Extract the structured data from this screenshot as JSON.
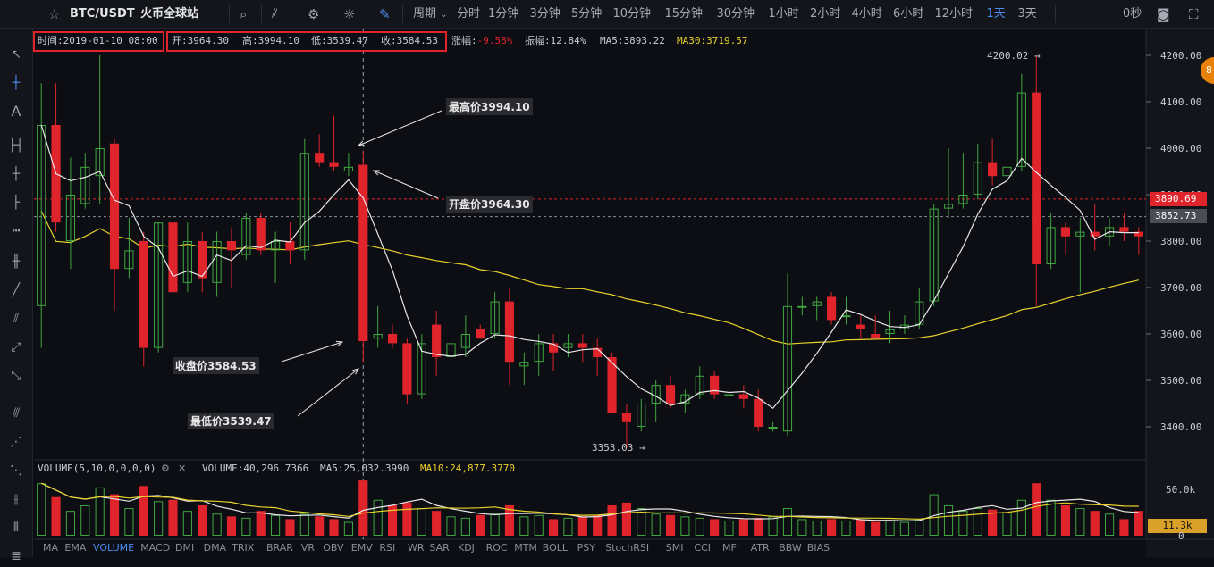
{
  "header": {
    "symbol": "BTC/USDT",
    "exchange": "火币全球站",
    "period_label": "周期",
    "timeframes": [
      "分时",
      "1分钟",
      "3分钟",
      "5分钟",
      "10分钟",
      "15分钟",
      "30分钟",
      "1小时",
      "2小时",
      "4小时",
      "6小时",
      "12小时",
      "1天",
      "3天"
    ],
    "active_timeframe": "1天",
    "countdown": "0秒"
  },
  "ohlc": {
    "time_label": "时间:2019-01-10 08:00",
    "open_label": "开:3964.30",
    "high_label": "高:3994.10",
    "low_label": "低:3539.47",
    "close_label": "收:3584.53",
    "change_label": "涨幅:",
    "change_value": "-9.58%",
    "amplitude_label": "振幅:12.84%",
    "ma5_label": "MA5:3893.22",
    "ma30_label": "MA30:3719.57"
  },
  "annotations": {
    "high": "最高价3994.10",
    "open": "开盘价3964.30",
    "close": "收盘价3584.53",
    "low": "最低价3539.47",
    "max_marker": "4200.02 →",
    "min_marker": "3353.03 →"
  },
  "price_axis": {
    "ticks": [
      "4200.00",
      "4100.00",
      "4000.00",
      "3900.00",
      "3800.00",
      "3700.00",
      "3600.00",
      "3500.00",
      "3400.00"
    ],
    "red_level_label": "3890.69",
    "gray_level_label": "3852.73"
  },
  "volume_panel": {
    "title": "VOLUME(5,10,0,0,0,0)",
    "volume_label": "VOLUME:40,296.7366",
    "ma5_label": "MA5:25,032.3990",
    "ma10_label": "MA10:24,877.3770",
    "axis_tick": "50.0k",
    "axis_zero": "0",
    "current_label": "11.3k"
  },
  "indicators": [
    "MA",
    "EMA",
    "VOLUME",
    "MACD",
    "DMI",
    "DMA",
    "TRIX",
    "BRAR",
    "VR",
    "OBV",
    "EMV",
    "RSI",
    "WR",
    "SAR",
    "KDJ",
    "ROC",
    "MTM",
    "BOLL",
    "PSY",
    "StochRSI",
    "SMI",
    "CCI",
    "MFI",
    "ATR",
    "BBW",
    "BIAS"
  ],
  "active_indicator": "VOLUME",
  "colors": {
    "up": "#3fa73f",
    "down": "#e0242b",
    "ma5": "#e8e8e8",
    "ma30": "#e9d22c",
    "accent": "#4d8df5",
    "volume_tag": "#d9a02a"
  },
  "chart_data": {
    "type": "candlestick",
    "title": "BTC/USDT",
    "ylim": [
      3310,
      4250
    ],
    "current_price_gray": 3852.73,
    "red_level": 3890.69,
    "candles": [
      {
        "o": 3660,
        "h": 4140,
        "l": 3570,
        "c": 4050,
        "v": 38
      },
      {
        "o": 4050,
        "h": 4140,
        "l": 3820,
        "c": 3840,
        "v": 28
      },
      {
        "o": 3800,
        "h": 3980,
        "l": 3740,
        "c": 3900,
        "v": 18
      },
      {
        "o": 3880,
        "h": 3990,
        "l": 3870,
        "c": 3960,
        "v": 22
      },
      {
        "o": 3940,
        "h": 4200,
        "l": 3880,
        "c": 4000,
        "v": 35
      },
      {
        "o": 4010,
        "h": 4020,
        "l": 3650,
        "c": 3740,
        "v": 30
      },
      {
        "o": 3740,
        "h": 3850,
        "l": 3720,
        "c": 3780,
        "v": 20
      },
      {
        "o": 3800,
        "h": 3820,
        "l": 3530,
        "c": 3570,
        "v": 36
      },
      {
        "o": 3570,
        "h": 3840,
        "l": 3560,
        "c": 3840,
        "v": 25
      },
      {
        "o": 3840,
        "h": 3880,
        "l": 3680,
        "c": 3690,
        "v": 26
      },
      {
        "o": 3710,
        "h": 3840,
        "l": 3690,
        "c": 3800,
        "v": 18
      },
      {
        "o": 3800,
        "h": 3820,
        "l": 3690,
        "c": 3720,
        "v": 22
      },
      {
        "o": 3710,
        "h": 3820,
        "l": 3680,
        "c": 3800,
        "v": 16
      },
      {
        "o": 3800,
        "h": 3830,
        "l": 3700,
        "c": 3780,
        "v": 14
      },
      {
        "o": 3770,
        "h": 3860,
        "l": 3760,
        "c": 3850,
        "v": 13
      },
      {
        "o": 3850,
        "h": 3860,
        "l": 3770,
        "c": 3780,
        "v": 18
      },
      {
        "o": 3780,
        "h": 3820,
        "l": 3710,
        "c": 3800,
        "v": 15
      },
      {
        "o": 3800,
        "h": 3840,
        "l": 3750,
        "c": 3780,
        "v": 12
      },
      {
        "o": 3780,
        "h": 4020,
        "l": 3760,
        "c": 3990,
        "v": 16
      },
      {
        "o": 3990,
        "h": 4030,
        "l": 3960,
        "c": 3970,
        "v": 14
      },
      {
        "o": 3970,
        "h": 4070,
        "l": 3950,
        "c": 3960,
        "v": 12
      },
      {
        "o": 3950,
        "h": 3990,
        "l": 3940,
        "c": 3960,
        "v": 10
      },
      {
        "o": 3964.3,
        "h": 3994.1,
        "l": 3539.47,
        "c": 3584.53,
        "v": 40
      },
      {
        "o": 3590,
        "h": 3660,
        "l": 3570,
        "c": 3600,
        "v": 26
      },
      {
        "o": 3600,
        "h": 3620,
        "l": 3570,
        "c": 3580,
        "v": 22
      },
      {
        "o": 3580,
        "h": 3590,
        "l": 3450,
        "c": 3470,
        "v": 24
      },
      {
        "o": 3470,
        "h": 3600,
        "l": 3460,
        "c": 3580,
        "v": 20
      },
      {
        "o": 3620,
        "h": 3650,
        "l": 3510,
        "c": 3550,
        "v": 18
      },
      {
        "o": 3550,
        "h": 3610,
        "l": 3540,
        "c": 3580,
        "v": 14
      },
      {
        "o": 3570,
        "h": 3640,
        "l": 3550,
        "c": 3600,
        "v": 13
      },
      {
        "o": 3610,
        "h": 3620,
        "l": 3590,
        "c": 3590,
        "v": 15
      },
      {
        "o": 3600,
        "h": 3690,
        "l": 3590,
        "c": 3670,
        "v": 16
      },
      {
        "o": 3670,
        "h": 3700,
        "l": 3490,
        "c": 3540,
        "v": 22
      },
      {
        "o": 3530,
        "h": 3560,
        "l": 3490,
        "c": 3540,
        "v": 14
      },
      {
        "o": 3540,
        "h": 3600,
        "l": 3510,
        "c": 3580,
        "v": 15
      },
      {
        "o": 3580,
        "h": 3600,
        "l": 3520,
        "c": 3560,
        "v": 12
      },
      {
        "o": 3570,
        "h": 3600,
        "l": 3550,
        "c": 3580,
        "v": 13
      },
      {
        "o": 3580,
        "h": 3600,
        "l": 3540,
        "c": 3570,
        "v": 14
      },
      {
        "o": 3570,
        "h": 3590,
        "l": 3510,
        "c": 3550,
        "v": 15
      },
      {
        "o": 3550,
        "h": 3560,
        "l": 3430,
        "c": 3430,
        "v": 22
      },
      {
        "o": 3430,
        "h": 3450,
        "l": 3353.03,
        "c": 3410,
        "v": 24
      },
      {
        "o": 3400,
        "h": 3460,
        "l": 3390,
        "c": 3450,
        "v": 20
      },
      {
        "o": 3450,
        "h": 3500,
        "l": 3410,
        "c": 3490,
        "v": 16
      },
      {
        "o": 3490,
        "h": 3510,
        "l": 3440,
        "c": 3450,
        "v": 15
      },
      {
        "o": 3450,
        "h": 3480,
        "l": 3430,
        "c": 3470,
        "v": 14
      },
      {
        "o": 3470,
        "h": 3530,
        "l": 3460,
        "c": 3510,
        "v": 13
      },
      {
        "o": 3510,
        "h": 3520,
        "l": 3460,
        "c": 3470,
        "v": 12
      },
      {
        "o": 3470,
        "h": 3480,
        "l": 3450,
        "c": 3470,
        "v": 11
      },
      {
        "o": 3470,
        "h": 3490,
        "l": 3440,
        "c": 3460,
        "v": 12
      },
      {
        "o": 3460,
        "h": 3480,
        "l": 3390,
        "c": 3400,
        "v": 13
      },
      {
        "o": 3400,
        "h": 3410,
        "l": 3390,
        "c": 3400,
        "v": 14
      },
      {
        "o": 3390,
        "h": 3730,
        "l": 3380,
        "c": 3660,
        "v": 20
      },
      {
        "o": 3660,
        "h": 3680,
        "l": 3640,
        "c": 3660,
        "v": 12
      },
      {
        "o": 3660,
        "h": 3680,
        "l": 3630,
        "c": 3670,
        "v": 11
      },
      {
        "o": 3680,
        "h": 3690,
        "l": 3620,
        "c": 3630,
        "v": 12
      },
      {
        "o": 3640,
        "h": 3680,
        "l": 3620,
        "c": 3640,
        "v": 11
      },
      {
        "o": 3620,
        "h": 3640,
        "l": 3590,
        "c": 3610,
        "v": 12
      },
      {
        "o": 3600,
        "h": 3640,
        "l": 3590,
        "c": 3590,
        "v": 10
      },
      {
        "o": 3600,
        "h": 3650,
        "l": 3580,
        "c": 3610,
        "v": 11
      },
      {
        "o": 3610,
        "h": 3640,
        "l": 3600,
        "c": 3620,
        "v": 10
      },
      {
        "o": 3620,
        "h": 3700,
        "l": 3610,
        "c": 3670,
        "v": 12
      },
      {
        "o": 3670,
        "h": 3880,
        "l": 3660,
        "c": 3870,
        "v": 30
      },
      {
        "o": 3870,
        "h": 4000,
        "l": 3850,
        "c": 3880,
        "v": 22
      },
      {
        "o": 3880,
        "h": 3990,
        "l": 3870,
        "c": 3900,
        "v": 18
      },
      {
        "o": 3900,
        "h": 4010,
        "l": 3890,
        "c": 3970,
        "v": 20
      },
      {
        "o": 3970,
        "h": 4020,
        "l": 3920,
        "c": 3940,
        "v": 19
      },
      {
        "o": 3940,
        "h": 3990,
        "l": 3930,
        "c": 3960,
        "v": 17
      },
      {
        "o": 3960,
        "h": 4160,
        "l": 3950,
        "c": 4120,
        "v": 26
      },
      {
        "o": 4120,
        "h": 4200.02,
        "l": 3660,
        "c": 3750,
        "v": 38
      },
      {
        "o": 3750,
        "h": 3860,
        "l": 3740,
        "c": 3830,
        "v": 26
      },
      {
        "o": 3830,
        "h": 3840,
        "l": 3770,
        "c": 3810,
        "v": 22
      },
      {
        "o": 3810,
        "h": 3850,
        "l": 3690,
        "c": 3820,
        "v": 20
      },
      {
        "o": 3820,
        "h": 3880,
        "l": 3780,
        "c": 3810,
        "v": 18
      },
      {
        "o": 3810,
        "h": 3850,
        "l": 3790,
        "c": 3830,
        "v": 16
      },
      {
        "o": 3830,
        "h": 3860,
        "l": 3800,
        "c": 3820,
        "v": 12
      },
      {
        "o": 3820,
        "h": 3830,
        "l": 3770,
        "c": 3810,
        "v": 18
      }
    ]
  }
}
